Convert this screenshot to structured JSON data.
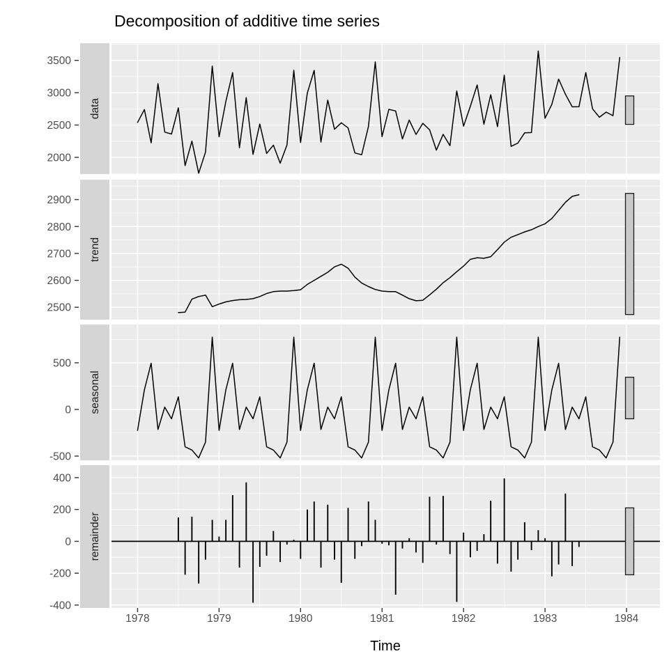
{
  "title": "Decomposition of additive time series",
  "colors": {
    "panel_bg": "#EBEBEB",
    "grid": "#FFFFFF",
    "strip_bg": "#D5D5D5",
    "strip_text": "#1A1A1A",
    "tick_label": "#4D4D4D",
    "axis_title": "#000000",
    "series": "#000000",
    "range_bar_fill": "#C9C9C9",
    "range_bar_stroke": "#1A1A1A"
  },
  "chart_data": {
    "type": "line",
    "title": "Decomposition of additive time series",
    "xlabel": "Time",
    "legend": "none",
    "grid": "on",
    "x_start_year": 1978,
    "frequency": 12,
    "x_range": [
      1977.68,
      1984.41
    ],
    "x_ticks": [
      1978,
      1979,
      1980,
      1981,
      1982,
      1983,
      1984
    ],
    "x_minor_ticks": [
      1978.5,
      1979.5,
      1980.5,
      1981.5,
      1982.5,
      1983.5
    ],
    "panels": [
      {
        "name": "data",
        "kind": "line",
        "ylim": [
          1741,
          3766
        ],
        "yticks": [
          2000,
          2500,
          3000,
          3500
        ],
        "yminor": [
          1750,
          2250,
          2750,
          3250,
          3750
        ],
        "range_bar": [
          2510,
          2950
        ],
        "start_month": 0,
        "values": [
          2540,
          2740,
          2225,
          3140,
          2390,
          2360,
          2765,
          1872,
          2250,
          1755,
          2080,
          3412,
          2317,
          2865,
          3310,
          2148,
          2924,
          2047,
          2515,
          2061,
          2188,
          1910,
          2190,
          3347,
          2230,
          2995,
          3345,
          2235,
          2885,
          2435,
          2535,
          2455,
          2067,
          2040,
          2477,
          3476,
          2320,
          2743,
          2718,
          2285,
          2577,
          2354,
          2526,
          2426,
          2112,
          2356,
          2180,
          3027,
          2483,
          2788,
          3119,
          2512,
          2968,
          2474,
          3272,
          2170,
          2220,
          2380,
          2383,
          3645,
          2605,
          2820,
          3210,
          2975,
          2782,
          2783,
          3310,
          2750,
          2620,
          2700,
          2645,
          3545
        ]
      },
      {
        "name": "trend",
        "kind": "line",
        "ylim": [
          2454,
          2974
        ],
        "yticks": [
          2500,
          2600,
          2700,
          2800,
          2900
        ],
        "yminor": [
          2550,
          2650,
          2750,
          2850,
          2950
        ],
        "range_bar": [
          2473,
          2923
        ],
        "start_month": 6,
        "values": [
          2480,
          2482,
          2530,
          2540,
          2545,
          2502,
          2512,
          2520,
          2525,
          2528,
          2529,
          2532,
          2540,
          2551,
          2558,
          2560,
          2560,
          2562,
          2565,
          2585,
          2600,
          2615,
          2630,
          2650,
          2660,
          2645,
          2612,
          2590,
          2577,
          2566,
          2560,
          2558,
          2558,
          2545,
          2532,
          2524,
          2526,
          2546,
          2567,
          2591,
          2610,
          2632,
          2653,
          2678,
          2684,
          2682,
          2688,
          2714,
          2742,
          2760,
          2770,
          2780,
          2788,
          2800,
          2810,
          2830,
          2860,
          2890,
          2912,
          2918
        ]
      },
      {
        "name": "seasonal",
        "kind": "line",
        "ylim": [
          -545,
          910
        ],
        "yticks": [
          -500,
          0,
          500
        ],
        "yminor": [
          -250,
          250,
          750
        ],
        "range_bar": [
          -100,
          345
        ],
        "start_month": 0,
        "values": [
          -225,
          210,
          495,
          -215,
          25,
          -100,
          135,
          -400,
          -435,
          -520,
          -350,
          775,
          -225,
          210,
          495,
          -215,
          25,
          -100,
          135,
          -400,
          -435,
          -520,
          -350,
          775,
          -225,
          210,
          495,
          -215,
          25,
          -100,
          135,
          -400,
          -435,
          -520,
          -350,
          775,
          -225,
          210,
          495,
          -215,
          25,
          -100,
          135,
          -400,
          -435,
          -520,
          -350,
          775,
          -225,
          210,
          495,
          -215,
          25,
          -100,
          135,
          -400,
          -435,
          -520,
          -350,
          775,
          -225,
          210,
          495,
          -215,
          25,
          -100,
          135,
          -400,
          -435,
          -520,
          -350,
          775
        ]
      },
      {
        "name": "remainder",
        "kind": "segments",
        "ylim": [
          -418,
          478
        ],
        "yticks": [
          -400,
          -200,
          0,
          200,
          400
        ],
        "yminor": [
          -300,
          -100,
          100,
          300
        ],
        "range_bar": [
          -210,
          210
        ],
        "zero_line": true,
        "start_month": 6,
        "values": [
          150,
          -210,
          155,
          -265,
          -115,
          135,
          30,
          135,
          290,
          -165,
          370,
          -385,
          -160,
          -90,
          65,
          -130,
          -20,
          10,
          -110,
          200,
          250,
          -165,
          230,
          -115,
          -260,
          210,
          -110,
          -30,
          250,
          135,
          -15,
          -25,
          -335,
          -45,
          20,
          -70,
          -135,
          280,
          -20,
          285,
          -80,
          -380,
          55,
          -100,
          -60,
          45,
          255,
          -140,
          395,
          -190,
          -115,
          120,
          -55,
          70,
          20,
          -220,
          -145,
          300,
          -155,
          -35
        ]
      }
    ]
  }
}
